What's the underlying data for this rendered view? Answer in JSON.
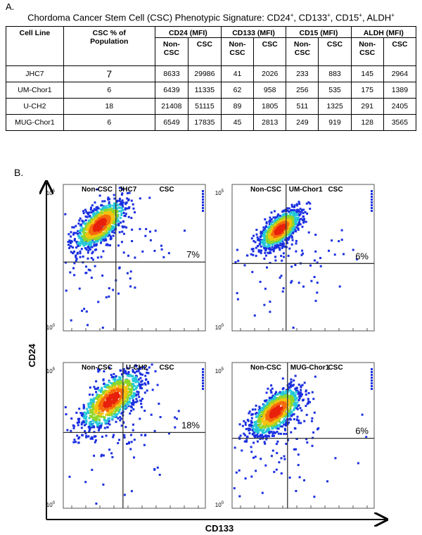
{
  "panel_a": {
    "label": "A.",
    "title": {
      "text": "Chordoma Cancer Stem Cell (CSC) Phenotypic Signature: ",
      "separator": ", ",
      "markers": [
        {
          "name": "CD24",
          "sup": "+"
        },
        {
          "name": "CD133",
          "sup": "+"
        },
        {
          "name": "CD15",
          "sup": "+"
        },
        {
          "name": "ALDH",
          "sup": "+"
        }
      ]
    },
    "table": {
      "headers": [
        "Cell Line",
        "CSC % of Population",
        "CD24 (MFI)",
        "CD133 (MFI)",
        "CD15 (MFI)",
        "ALDH (MFI)"
      ],
      "subheaders": [
        "Non-CSC",
        "CSC"
      ],
      "rows": [
        [
          "JHC7",
          7,
          8633,
          29986,
          41,
          2026,
          233,
          883,
          145,
          2964
        ],
        [
          "UM-Chor1",
          6,
          6439,
          11335,
          62,
          958,
          256,
          535,
          175,
          1389
        ],
        [
          "U-CH2",
          18,
          21408,
          51115,
          89,
          1805,
          511,
          1325,
          291,
          2405
        ],
        [
          "MUG-Chor1",
          6,
          6549,
          17835,
          45,
          2813,
          249,
          919,
          128,
          3565
        ]
      ]
    }
  },
  "panel_b": {
    "label": "B.",
    "y_label": "CD24",
    "x_label": "CD133",
    "ticks": {
      "top": {
        "base": "10",
        "exp": "5"
      },
      "bottom": {
        "base": "10",
        "exp": "0"
      }
    },
    "plots": [
      {
        "title": "JHC7",
        "left": "Non-CSC",
        "right": "CSC",
        "percent": "7%"
      },
      {
        "title": "UM-Chor1",
        "left": "Non-CSC",
        "right": "CSC",
        "percent": "6%"
      },
      {
        "title": "U-CH2",
        "left": "Non-CSC",
        "right": "CSC",
        "percent": "18%"
      },
      {
        "title": "MUG-Chor1",
        "left": "Non-CSC",
        "right": "CSC",
        "percent": "6%"
      }
    ]
  }
}
